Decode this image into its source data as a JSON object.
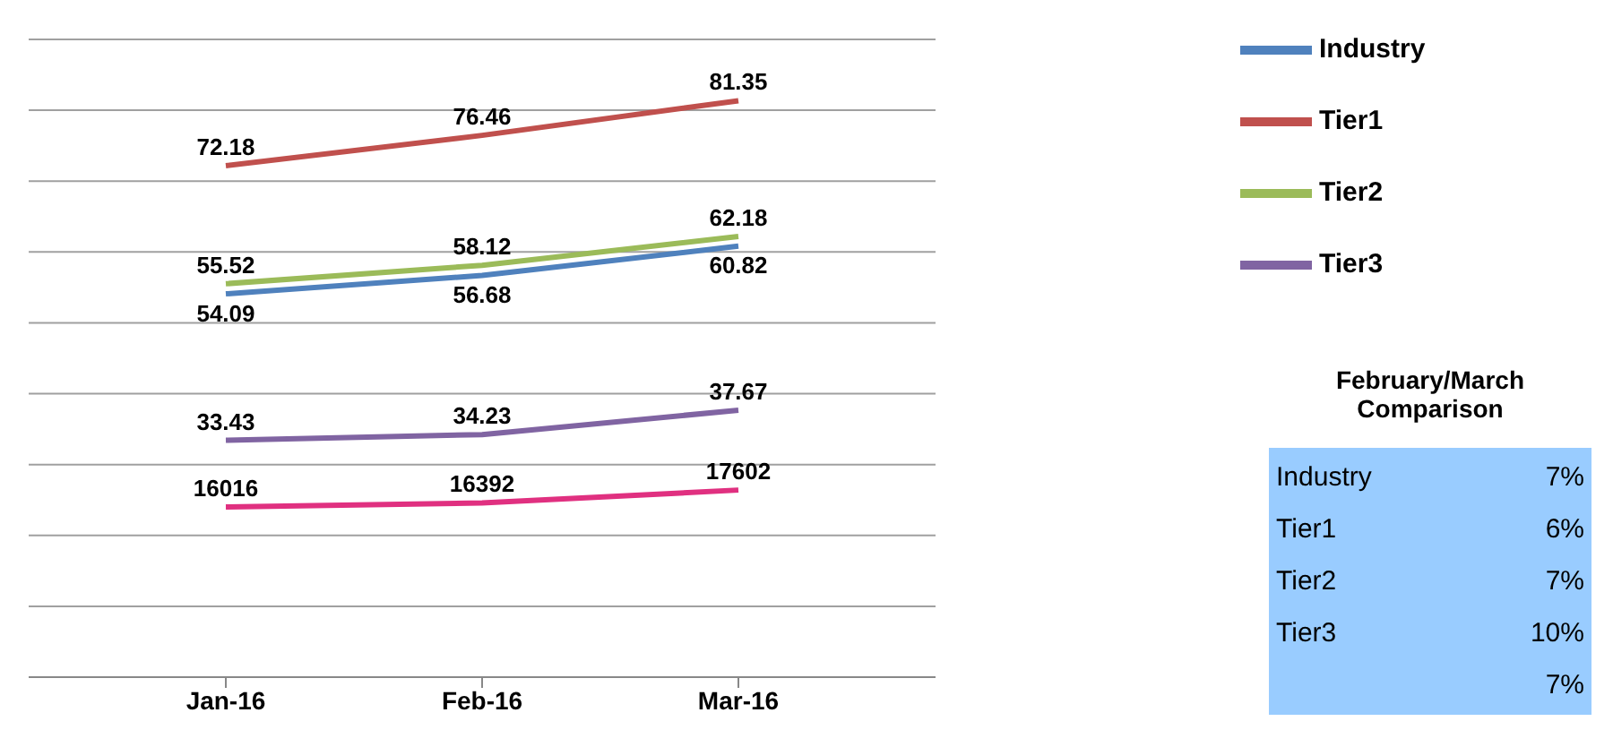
{
  "chart_data": {
    "type": "line",
    "categories": [
      "Jan-16",
      "Feb-16",
      "Mar-16"
    ],
    "series": [
      {
        "name": "Industry",
        "color": "#4f81bd",
        "values": [
          54.09,
          56.68,
          60.82
        ]
      },
      {
        "name": "Tier1",
        "color": "#c0504d",
        "values": [
          72.18,
          76.46,
          81.35
        ]
      },
      {
        "name": "Tier2",
        "color": "#9bbb59",
        "values": [
          55.52,
          58.12,
          62.18
        ]
      },
      {
        "name": "Tier3",
        "color": "#8064a2",
        "values": [
          33.43,
          34.23,
          37.67
        ]
      },
      {
        "color": "#e03080",
        "values": [
          16016,
          16392,
          17602
        ],
        "axis": "y2"
      }
    ],
    "ylim": [
      0,
      90
    ],
    "yticks": [
      {
        "value": 0,
        "label": null
      },
      {
        "value": 10,
        "label": null
      },
      {
        "value": 20,
        "label": null
      },
      {
        "value": 30,
        "label": null
      },
      {
        "value": 40,
        "label": null
      },
      {
        "value": 50,
        "label": null
      },
      {
        "value": 60,
        "label": null
      },
      {
        "value": 70,
        "label": null
      },
      {
        "value": 80,
        "label": null
      },
      {
        "value": 90,
        "label": null
      }
    ],
    "y2lim": [
      0,
      60000
    ],
    "tick_labels": "x",
    "grid": "y",
    "legend": "right",
    "data_labels": true,
    "marker": "none",
    "line_style": "solid",
    "annotations": [
      "February/March Comparison",
      "Industry",
      "7%",
      "Tier1",
      "6%",
      "Tier2",
      "7%",
      "Tier3",
      "10%",
      "7%"
    ]
  }
}
